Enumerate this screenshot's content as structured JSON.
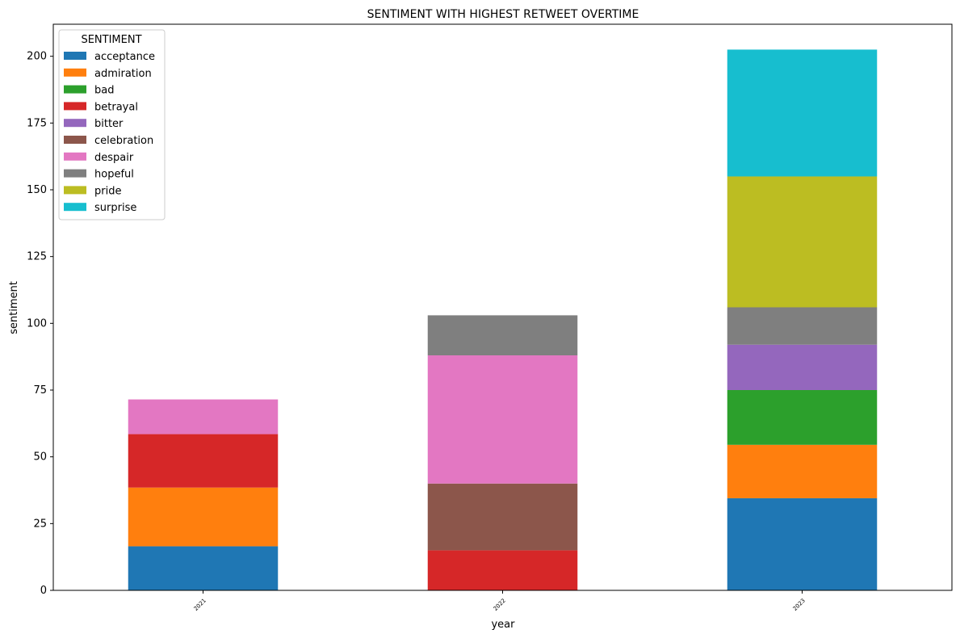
{
  "chart_data": {
    "type": "bar",
    "stacked": true,
    "title": "SENTIMENT WITH HIGHEST RETWEET OVERTIME",
    "xlabel": "year",
    "ylabel": "sentiment",
    "categories": [
      "2021",
      "2022",
      "2023"
    ],
    "ylim": [
      0,
      212
    ],
    "yticks": [
      0,
      25,
      50,
      75,
      100,
      125,
      150,
      175,
      200
    ],
    "grid": false,
    "legend_title": "SENTIMENT",
    "legend_position": "top-left",
    "series": [
      {
        "name": "acceptance",
        "color": "#1f77b4",
        "values": [
          16.5,
          0,
          34.5
        ]
      },
      {
        "name": "admiration",
        "color": "#ff7f0e",
        "values": [
          22,
          0,
          20
        ]
      },
      {
        "name": "bad",
        "color": "#2ca02c",
        "values": [
          0,
          0,
          20.5
        ]
      },
      {
        "name": "betrayal",
        "color": "#d62728",
        "values": [
          20,
          15,
          0
        ]
      },
      {
        "name": "bitter",
        "color": "#9467bd",
        "values": [
          0,
          0,
          17
        ]
      },
      {
        "name": "celebration",
        "color": "#8c564b",
        "values": [
          0,
          25,
          0
        ]
      },
      {
        "name": "despair",
        "color": "#e377c2",
        "values": [
          13,
          48,
          0
        ]
      },
      {
        "name": "hopeful",
        "color": "#7f7f7f",
        "values": [
          0,
          15,
          14
        ]
      },
      {
        "name": "pride",
        "color": "#bcbd22",
        "values": [
          0,
          0,
          49
        ]
      },
      {
        "name": "surprise",
        "color": "#17becf",
        "values": [
          0,
          0,
          47.5
        ]
      }
    ]
  }
}
